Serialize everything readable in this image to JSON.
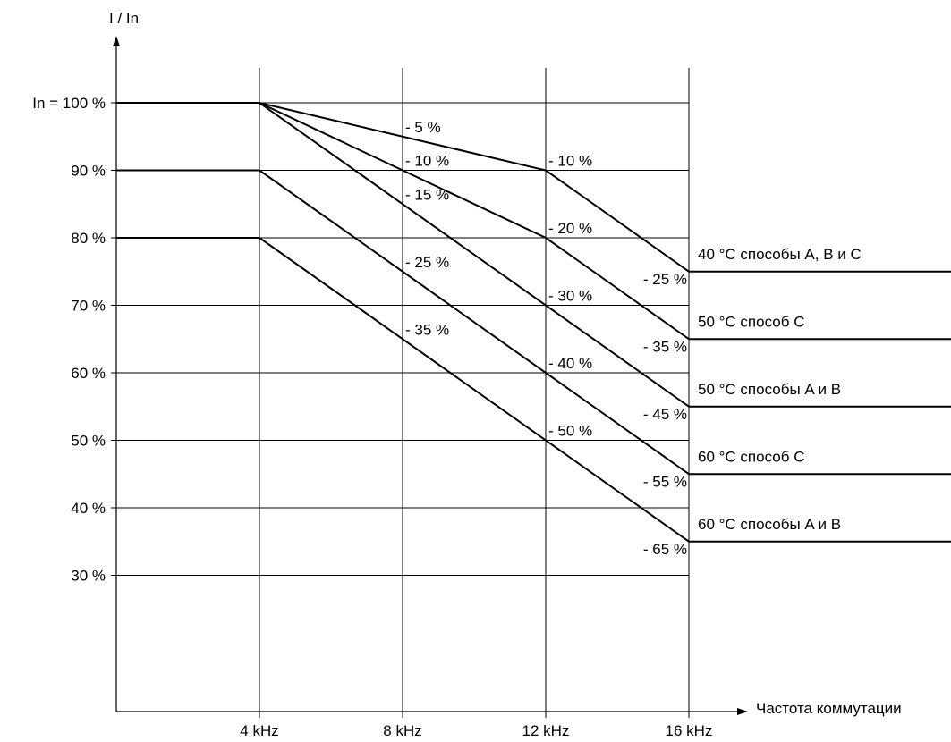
{
  "chart_data": {
    "type": "line",
    "ylabel": "I / In",
    "xlabel": "Частота коммутации",
    "x": [
      4,
      8,
      12,
      16
    ],
    "x_tick_labels": [
      "4 kHz",
      "8 kHz",
      "12 kHz",
      "16 kHz"
    ],
    "x_range": [
      0,
      16
    ],
    "y_range": [
      0,
      100
    ],
    "y_ticks": [
      100,
      90,
      80,
      70,
      60,
      50,
      40,
      30
    ],
    "y_tick_labels": [
      "In = 100 %",
      "90 %",
      "80 %",
      "70 %",
      "60 %",
      "50 %",
      "40 %",
      "30 %"
    ],
    "grid": true,
    "series": [
      {
        "name": "40 °C способы A, B и C",
        "points": [
          [
            0,
            100
          ],
          [
            4,
            100
          ],
          [
            12,
            90
          ],
          [
            16,
            75
          ],
          [
            20,
            75
          ]
        ]
      },
      {
        "name": "50 °C способ C",
        "points": [
          [
            0,
            100
          ],
          [
            4,
            100
          ],
          [
            12,
            80
          ],
          [
            16,
            65
          ],
          [
            20,
            65
          ]
        ]
      },
      {
        "name": "50 °C способы A и B",
        "points": [
          [
            0,
            100
          ],
          [
            4,
            100
          ],
          [
            16,
            55
          ],
          [
            20,
            55
          ]
        ]
      },
      {
        "name": "60 °C способ C",
        "points": [
          [
            0,
            90
          ],
          [
            4,
            90
          ],
          [
            16,
            45
          ],
          [
            20,
            45
          ]
        ]
      },
      {
        "name": "60 °C способы A и B",
        "points": [
          [
            0,
            80
          ],
          [
            4,
            80
          ],
          [
            16,
            35
          ],
          [
            20,
            35
          ]
        ]
      }
    ],
    "annotations": [
      {
        "text": "- 5 %",
        "x": 8,
        "y": 95
      },
      {
        "text": "- 10 %",
        "x": 8,
        "y": 90
      },
      {
        "text": "- 15 %",
        "x": 8,
        "y": 85
      },
      {
        "text": "- 25 %",
        "x": 8,
        "y": 75
      },
      {
        "text": "- 35 %",
        "x": 8,
        "y": 65
      },
      {
        "text": "- 10 %",
        "x": 12,
        "y": 90
      },
      {
        "text": "- 20 %",
        "x": 12,
        "y": 80
      },
      {
        "text": "- 30 %",
        "x": 12,
        "y": 70
      },
      {
        "text": "- 40 %",
        "x": 12,
        "y": 60
      },
      {
        "text": "- 50 %",
        "x": 12,
        "y": 50
      },
      {
        "text": "- 25 %",
        "x": 16,
        "y": 75
      },
      {
        "text": "- 35 %",
        "x": 16,
        "y": 65
      },
      {
        "text": "- 45 %",
        "x": 16,
        "y": 55
      },
      {
        "text": "- 55 %",
        "x": 16,
        "y": 45
      },
      {
        "text": "- 65 %",
        "x": 16,
        "y": 35
      }
    ]
  }
}
